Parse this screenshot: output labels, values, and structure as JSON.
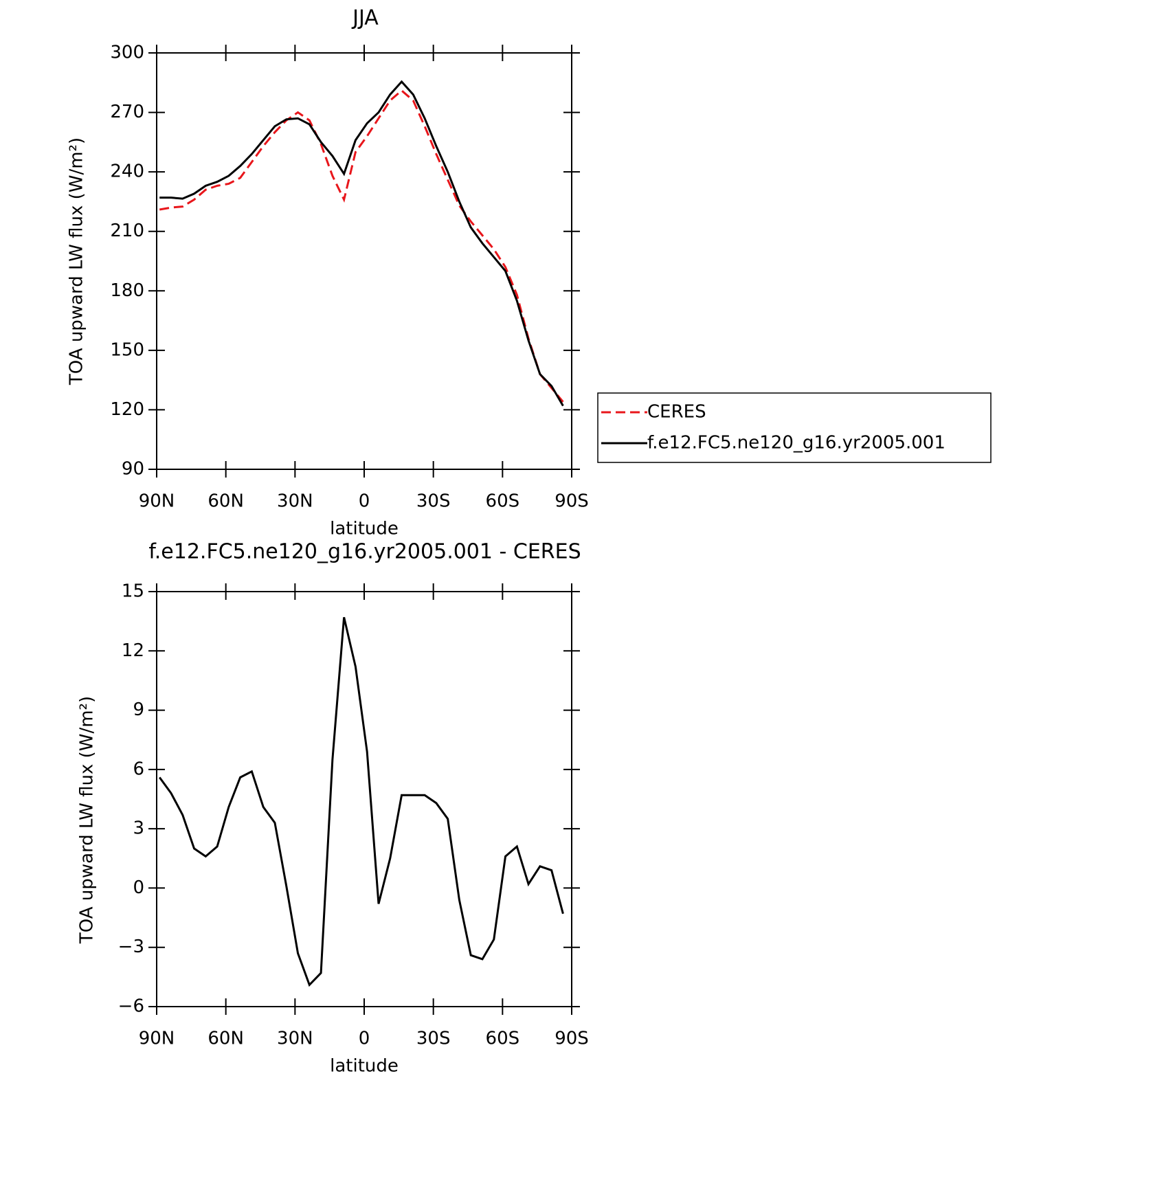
{
  "chart_data": [
    {
      "type": "line",
      "title": "JJA",
      "xlabel": "latitude",
      "ylabel": "TOA upward LW flux (W/m²)",
      "x": [
        88.75,
        83.75,
        78.75,
        73.75,
        68.75,
        63.75,
        58.75,
        53.75,
        48.75,
        43.75,
        38.75,
        33.75,
        28.75,
        23.75,
        18.75,
        13.75,
        8.75,
        3.75,
        -1.25,
        -6.25,
        -11.25,
        -16.25,
        -21.25,
        -26.25,
        -31.25,
        -36.25,
        -41.25,
        -46.25,
        -51.25,
        -56.25,
        -61.25,
        -66.25,
        -71.25,
        -76.25,
        -81.25,
        -86.25
      ],
      "series": [
        {
          "name": "CERES",
          "color": "#e8161b",
          "dash": true,
          "values": [
            221,
            222,
            222.5,
            226,
            231,
            233,
            234,
            237,
            245,
            253,
            260,
            266,
            270,
            266,
            254,
            238,
            226,
            250,
            258,
            267,
            276,
            281,
            276,
            263,
            249,
            236,
            223,
            215,
            208,
            201,
            192,
            178,
            156,
            138,
            131,
            124
          ]
        },
        {
          "name": "f.e12.FC5.ne120_g16.yr2005.001",
          "color": "#000000",
          "dash": false,
          "values": [
            227,
            227,
            226.5,
            229,
            233,
            235,
            238,
            243,
            249,
            256,
            263,
            266.5,
            267,
            264,
            255,
            248,
            239,
            256,
            264.5,
            270,
            279,
            285.5,
            279,
            267,
            253,
            240,
            225,
            212,
            204,
            197,
            190,
            175,
            155,
            138,
            132,
            122
          ]
        }
      ],
      "xlim": [
        90,
        -90
      ],
      "ylim": [
        90,
        300
      ],
      "xticks": [
        {
          "value": 90,
          "label": "90N"
        },
        {
          "value": 60,
          "label": "60N"
        },
        {
          "value": 30,
          "label": "30N"
        },
        0,
        {
          "value": -30,
          "label": "30S"
        },
        {
          "value": -60,
          "label": "60S"
        },
        {
          "value": -90,
          "label": "90S"
        }
      ],
      "yticks": [
        90,
        120,
        150,
        180,
        210,
        240,
        270,
        300
      ],
      "legend": "right"
    },
    {
      "type": "line",
      "title": "f.e12.FC5.ne120_g16.yr2005.001 - CERES",
      "xlabel": "latitude",
      "ylabel": "TOA upward LW flux (W/m²)",
      "x": [
        88.75,
        83.75,
        78.75,
        73.75,
        68.75,
        63.75,
        58.75,
        53.75,
        48.75,
        43.75,
        38.75,
        33.75,
        28.75,
        23.75,
        18.75,
        13.75,
        8.75,
        3.75,
        -1.25,
        -6.25,
        -11.25,
        -16.25,
        -21.25,
        -26.25,
        -31.25,
        -36.25,
        -41.25,
        -46.25,
        -51.25,
        -56.25,
        -61.25,
        -66.25,
        -71.25,
        -76.25,
        -81.25,
        -86.25
      ],
      "series": [
        {
          "color": "#000000",
          "dash": false,
          "values": [
            5.6,
            4.8,
            3.7,
            2.0,
            1.6,
            2.1,
            4.1,
            5.6,
            5.9,
            4.1,
            3.3,
            0.1,
            -3.3,
            -4.9,
            -4.3,
            6.5,
            13.7,
            11.2,
            6.9,
            -0.8,
            1.5,
            4.7,
            4.7,
            4.7,
            4.3,
            3.5,
            -0.6,
            -3.4,
            -3.6,
            -2.6,
            1.6,
            2.1,
            0.2,
            1.1,
            0.9,
            -1.3
          ]
        }
      ],
      "xlim": [
        90,
        -90
      ],
      "ylim": [
        -6,
        15
      ],
      "xticks": [
        {
          "value": 90,
          "label": "90N"
        },
        {
          "value": 60,
          "label": "60N"
        },
        {
          "value": 30,
          "label": "30N"
        },
        0,
        {
          "value": -30,
          "label": "30S"
        },
        {
          "value": -60,
          "label": "60S"
        },
        {
          "value": -90,
          "label": "90S"
        }
      ],
      "yticks": [
        {
          "value": -6,
          "label": "−6"
        },
        {
          "value": -3,
          "label": "−3"
        },
        0,
        3,
        6,
        9,
        12,
        15
      ]
    }
  ]
}
